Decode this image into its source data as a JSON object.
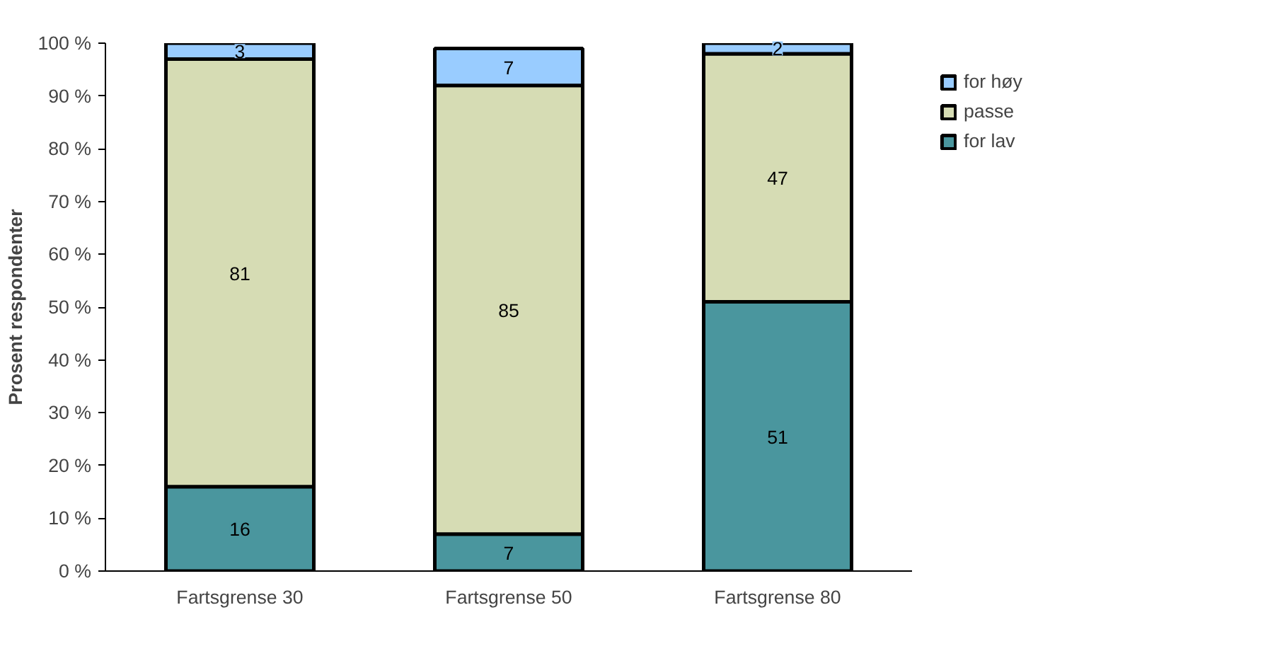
{
  "chart_data": {
    "type": "bar",
    "stacked": true,
    "ylabel": "Prosent respondenter",
    "categories": [
      "Fartsgrense 30",
      "Fartsgrense 50",
      "Fartsgrense 80"
    ],
    "series": [
      {
        "name": "for lav",
        "color": "#4a969e",
        "values": [
          16,
          7,
          51
        ]
      },
      {
        "name": "passe",
        "color": "#d6dcb4",
        "values": [
          81,
          85,
          47
        ]
      },
      {
        "name": "for høy",
        "color": "#99ccff",
        "values": [
          3,
          7,
          2
        ]
      }
    ],
    "ylim": [
      0,
      100
    ],
    "yticks": [
      {
        "value": 0,
        "label": "0 %"
      },
      {
        "value": 10,
        "label": "10 %"
      },
      {
        "value": 20,
        "label": "20 %"
      },
      {
        "value": 30,
        "label": "30 %"
      },
      {
        "value": 40,
        "label": "40 %"
      },
      {
        "value": 50,
        "label": "50 %"
      },
      {
        "value": 60,
        "label": "60 %"
      },
      {
        "value": 70,
        "label": "70 %"
      },
      {
        "value": 80,
        "label": "80 %"
      },
      {
        "value": 90,
        "label": "90 %"
      },
      {
        "value": 100,
        "label": "100 %"
      }
    ],
    "data_labels": true,
    "grid": false,
    "legend": "right"
  }
}
